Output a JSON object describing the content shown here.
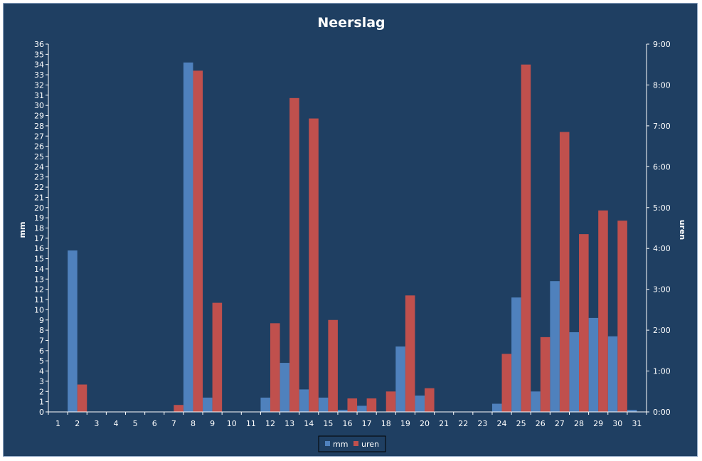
{
  "chart_data": {
    "type": "bar",
    "title": "Neerslag",
    "xlabel": "",
    "ylabel": "mm",
    "y2label": "uren",
    "ylim": [
      0,
      36
    ],
    "y2lim": [
      0,
      9
    ],
    "y2_ticks": [
      "0:00",
      "1:00",
      "2:00",
      "3:00",
      "4:00",
      "5:00",
      "6:00",
      "7:00",
      "8:00",
      "9:00"
    ],
    "grid": false,
    "legend": "bottom",
    "categories": [
      "1",
      "2",
      "3",
      "4",
      "5",
      "6",
      "7",
      "8",
      "9",
      "10",
      "11",
      "12",
      "13",
      "14",
      "15",
      "16",
      "17",
      "18",
      "19",
      "20",
      "21",
      "22",
      "23",
      "24",
      "25",
      "26",
      "27",
      "28",
      "29",
      "30",
      "31"
    ],
    "series": [
      {
        "name": "mm",
        "axis": "left",
        "color": "#4f81bd",
        "values": [
          0,
          15.8,
          0,
          0,
          0,
          0,
          0,
          34.2,
          1.4,
          0,
          0,
          1.4,
          4.8,
          2.2,
          1.4,
          0.2,
          0.6,
          0,
          6.4,
          1.6,
          0,
          0,
          0,
          0.8,
          11.2,
          2.0,
          12.8,
          7.8,
          9.2,
          7.4,
          0.2
        ]
      },
      {
        "name": "uren",
        "axis": "right",
        "color": "#c0504d",
        "values": [
          0,
          0.67,
          0,
          0,
          0,
          0,
          0.17,
          8.35,
          2.67,
          0,
          0,
          2.17,
          7.68,
          7.18,
          2.25,
          0.33,
          0.33,
          0.5,
          2.85,
          0.58,
          0,
          0,
          0,
          1.42,
          8.5,
          1.83,
          6.85,
          4.35,
          4.93,
          4.68,
          0
        ]
      }
    ]
  }
}
